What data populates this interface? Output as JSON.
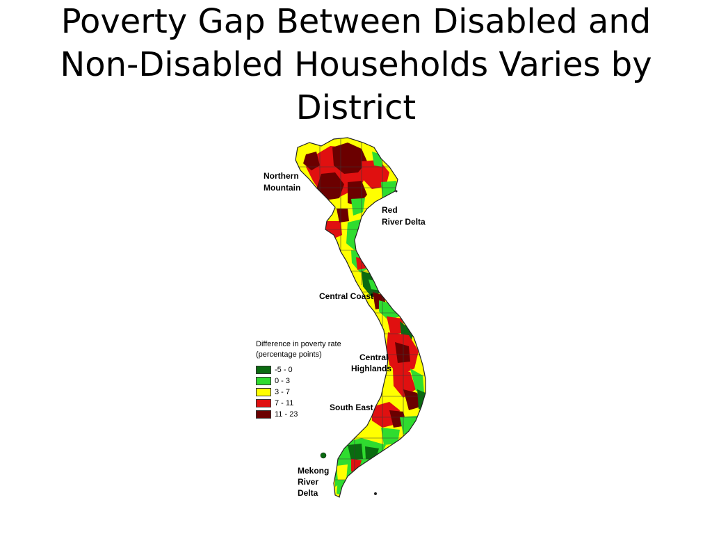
{
  "slide": {
    "title": "Poverty Gap Between Disabled and Non-Disabled Households Varies by District"
  },
  "map": {
    "regions": [
      {
        "id": "northern-mountain",
        "label_lines": [
          "Northern",
          "Mountain"
        ]
      },
      {
        "id": "red-river-delta",
        "label_lines": [
          "Red",
          "River Delta"
        ]
      },
      {
        "id": "central-coast",
        "label_lines": [
          "Central Coast"
        ]
      },
      {
        "id": "central-highlands",
        "label_lines": [
          "Central",
          "Highlands"
        ]
      },
      {
        "id": "south-east",
        "label_lines": [
          "South East"
        ]
      },
      {
        "id": "mekong-river-delta",
        "label_lines": [
          "Mekong",
          "River",
          "Delta"
        ]
      }
    ],
    "colors": {
      "dark_green": "#0a6b10",
      "light_green": "#2fdc2f",
      "yellow": "#ffff00",
      "red": "#e01010",
      "dark_red": "#6b0000",
      "border": "#3a3a3a"
    }
  },
  "legend": {
    "title_line1": "Difference in poverty rate",
    "title_line2": "(percentage points)",
    "items": [
      {
        "label": "-5 - 0",
        "color": "#0a6b10"
      },
      {
        "label": "0 - 3",
        "color": "#2fdc2f"
      },
      {
        "label": "3 - 7",
        "color": "#ffff00"
      },
      {
        "label": "7 - 11",
        "color": "#e01010"
      },
      {
        "label": "11 - 23",
        "color": "#6b0000"
      }
    ]
  }
}
